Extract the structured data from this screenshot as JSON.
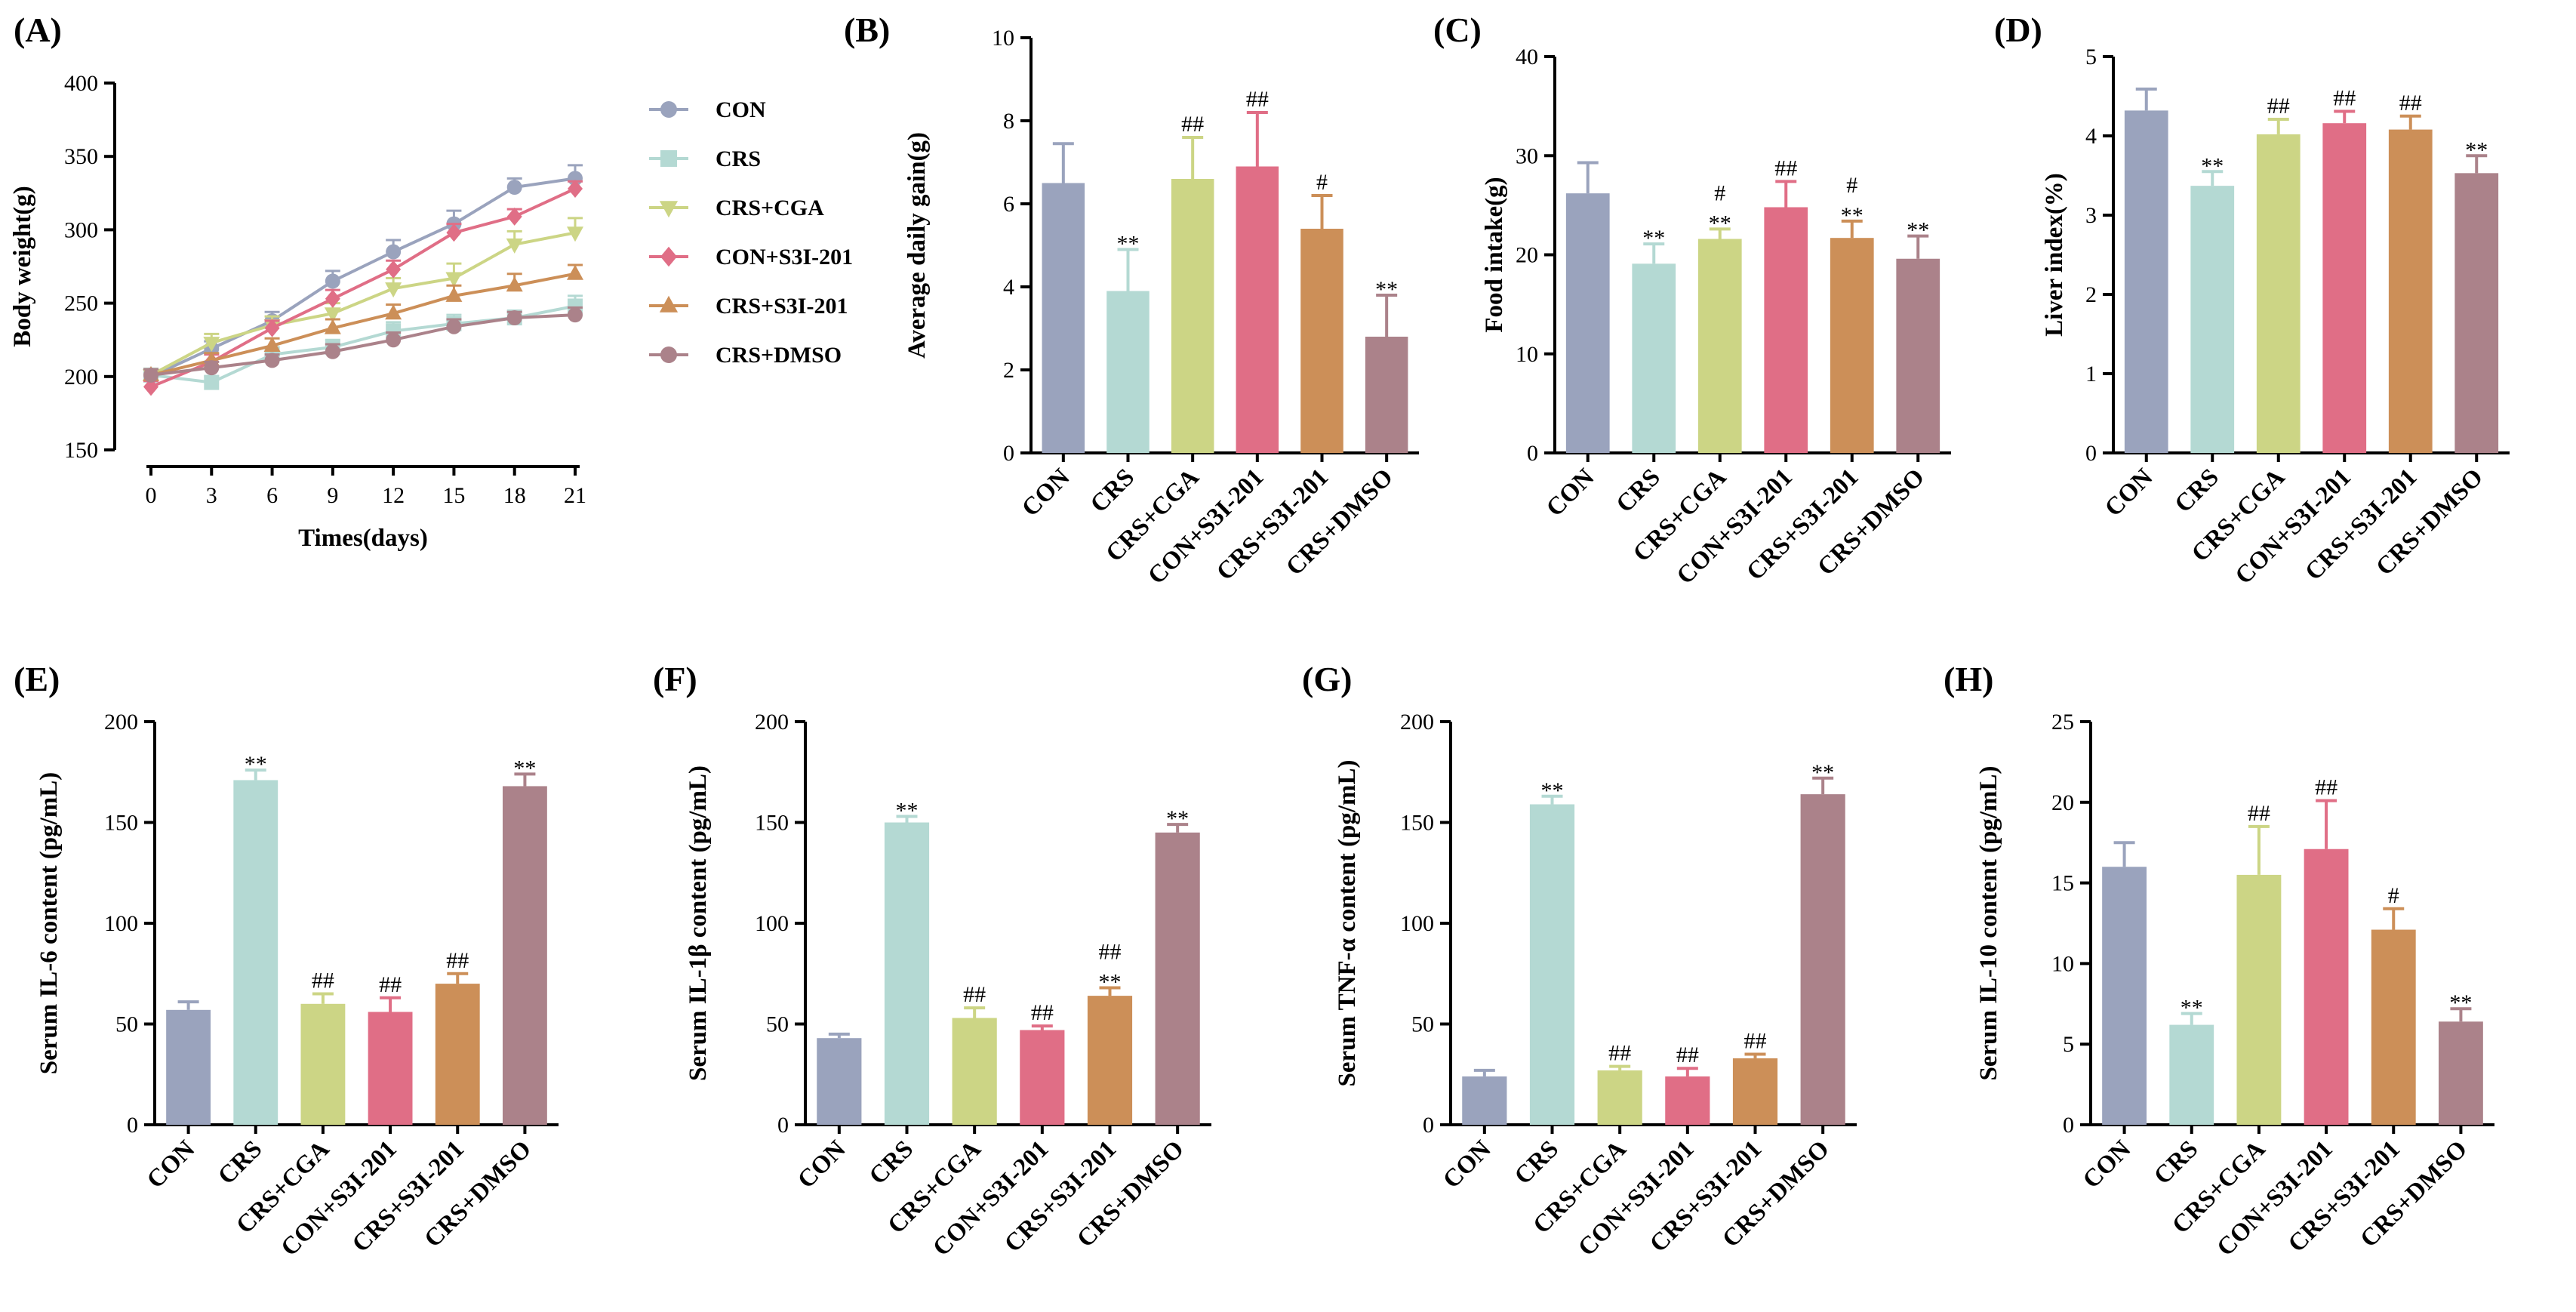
{
  "colors": {
    "CON": "#9aa3bd",
    "CRS": "#b4d9d3",
    "CRS+CGA": "#ccd585",
    "CON+S3I-201": "#e06e86",
    "CRS+S3I-201": "#cc8f58",
    "CRS+DMSO": "#ab828a"
  },
  "chart_data": [
    {
      "panel": "(A)",
      "type": "line",
      "xlabel": "Times(days)",
      "ylabel": "Body weight(g)",
      "x": [
        0,
        3,
        6,
        9,
        12,
        15,
        18,
        21
      ],
      "ylim": [
        150,
        400
      ],
      "yticks": [
        150,
        200,
        250,
        300,
        350,
        400
      ],
      "series": [
        {
          "name": "CON",
          "marker": "circle",
          "values": [
            200,
            219,
            238,
            265,
            285,
            304,
            329,
            335
          ],
          "err": [
            4,
            5,
            6,
            7,
            8,
            9,
            6,
            9
          ]
        },
        {
          "name": "CRS",
          "marker": "square",
          "values": [
            201,
            196,
            215,
            220,
            231,
            236,
            240,
            248
          ],
          "err": [
            4,
            4,
            5,
            5,
            6,
            6,
            5,
            7
          ]
        },
        {
          "name": "CRS+CGA",
          "marker": "triangle-down",
          "values": [
            201,
            223,
            235,
            243,
            260,
            267,
            290,
            298
          ],
          "err": [
            4,
            6,
            6,
            7,
            7,
            10,
            9,
            10
          ]
        },
        {
          "name": "CON+S3I-201",
          "marker": "diamond",
          "values": [
            193,
            210,
            233,
            253,
            273,
            298,
            309,
            328
          ],
          "err": [
            4,
            5,
            5,
            6,
            6,
            6,
            5,
            5
          ]
        },
        {
          "name": "CRS+S3I-201",
          "marker": "triangle",
          "values": [
            201,
            211,
            221,
            233,
            243,
            255,
            262,
            270
          ],
          "err": [
            4,
            5,
            5,
            6,
            6,
            7,
            8,
            6
          ]
        },
        {
          "name": "CRS+DMSO",
          "marker": "circle",
          "values": [
            201,
            206,
            211,
            217,
            225,
            234,
            240,
            242
          ],
          "err": [
            4,
            4,
            4,
            5,
            5,
            5,
            4,
            5
          ]
        }
      ],
      "legend": [
        "CON",
        "CRS",
        "CRS+CGA",
        "CON+S3I-201",
        "CRS+S3I-201",
        "CRS+DMSO"
      ]
    },
    {
      "panel": "(B)",
      "type": "bar",
      "ylabel": "Average daily gain(g)",
      "categories": [
        "CON",
        "CRS",
        "CRS+CGA",
        "CON+S3I-201",
        "CRS+S3I-201",
        "CRS+DMSO"
      ],
      "values": [
        6.5,
        3.9,
        6.6,
        6.9,
        5.4,
        2.8
      ],
      "err": [
        0.95,
        1.0,
        1.0,
        1.3,
        0.8,
        1.0
      ],
      "sig": [
        [],
        [
          "**"
        ],
        [
          "##"
        ],
        [
          "##"
        ],
        [
          "#"
        ],
        [
          "**"
        ]
      ],
      "ylim": [
        0,
        10
      ],
      "yticks": [
        0,
        2,
        4,
        6,
        8,
        10
      ]
    },
    {
      "panel": "(C)",
      "type": "bar",
      "ylabel": "Food intake(g)",
      "categories": [
        "CON",
        "CRS",
        "CRS+CGA",
        "CON+S3I-201",
        "CRS+S3I-201",
        "CRS+DMSO"
      ],
      "values": [
        26.2,
        19.1,
        21.6,
        24.8,
        21.7,
        19.6
      ],
      "err": [
        3.1,
        2.0,
        1.0,
        2.6,
        1.7,
        2.3
      ],
      "sig": [
        [],
        [
          "**"
        ],
        [
          "#",
          "**"
        ],
        [
          "##"
        ],
        [
          "#",
          "**"
        ],
        [
          "**"
        ]
      ],
      "ylim": [
        0,
        40
      ],
      "yticks": [
        0,
        10,
        20,
        30,
        40
      ]
    },
    {
      "panel": "(D)",
      "type": "bar",
      "ylabel": "Liver index(%)",
      "categories": [
        "CON",
        "CRS",
        "CRS+CGA",
        "CON+S3I-201",
        "CRS+S3I-201",
        "CRS+DMSO"
      ],
      "values": [
        4.32,
        3.37,
        4.02,
        4.16,
        4.08,
        3.53
      ],
      "err": [
        0.27,
        0.18,
        0.19,
        0.15,
        0.17,
        0.22
      ],
      "sig": [
        [],
        [
          "**"
        ],
        [
          "##"
        ],
        [
          "##"
        ],
        [
          "##"
        ],
        [
          "**"
        ]
      ],
      "ylim": [
        0,
        5
      ],
      "yticks": [
        0,
        1,
        2,
        3,
        4,
        5
      ]
    },
    {
      "panel": "(E)",
      "type": "bar",
      "ylabel": "Serum IL-6 content (pg/mL)",
      "categories": [
        "CON",
        "CRS",
        "CRS+CGA",
        "CON+S3I-201",
        "CRS+S3I-201",
        "CRS+DMSO"
      ],
      "values": [
        57,
        171,
        60,
        56,
        70,
        168
      ],
      "err": [
        4,
        5,
        5,
        7,
        5,
        6
      ],
      "sig": [
        [],
        [
          "**"
        ],
        [
          "##"
        ],
        [
          "##"
        ],
        [
          "##"
        ],
        [
          "**"
        ]
      ],
      "ylim": [
        0,
        200
      ],
      "yticks": [
        0,
        50,
        100,
        150,
        200
      ]
    },
    {
      "panel": "(F)",
      "type": "bar",
      "ylabel": "Serum IL-1β content (pg/mL)",
      "categories": [
        "CON",
        "CRS",
        "CRS+CGA",
        "CON+S3I-201",
        "CRS+S3I-201",
        "CRS+DMSO"
      ],
      "values": [
        43,
        150,
        53,
        47,
        64,
        145
      ],
      "err": [
        2,
        3,
        5,
        2,
        4,
        4
      ],
      "sig": [
        [],
        [
          "**"
        ],
        [
          "##"
        ],
        [
          "##"
        ],
        [
          "##",
          "**"
        ],
        [
          "**"
        ]
      ],
      "ylim": [
        0,
        200
      ],
      "yticks": [
        0,
        50,
        100,
        150,
        200
      ]
    },
    {
      "panel": "(G)",
      "type": "bar",
      "ylabel": "Serum TNF-α content (pg/mL)",
      "categories": [
        "CON",
        "CRS",
        "CRS+CGA",
        "CON+S3I-201",
        "CRS+S3I-201",
        "CRS+DMSO"
      ],
      "values": [
        24,
        159,
        27,
        24,
        33,
        164
      ],
      "err": [
        3,
        4,
        2,
        4,
        2,
        8
      ],
      "sig": [
        [],
        [
          "**"
        ],
        [
          "##"
        ],
        [
          "##"
        ],
        [
          "##"
        ],
        [
          "**"
        ]
      ],
      "ylim": [
        0,
        200
      ],
      "yticks": [
        0,
        50,
        100,
        150,
        200
      ]
    },
    {
      "panel": "(H)",
      "type": "bar",
      "ylabel": "Serum IL-10 content (pg/mL)",
      "categories": [
        "CON",
        "CRS",
        "CRS+CGA",
        "CON+S3I-201",
        "CRS+S3I-201",
        "CRS+DMSO"
      ],
      "values": [
        16.0,
        6.2,
        15.5,
        17.1,
        12.1,
        6.4
      ],
      "err": [
        1.5,
        0.7,
        3.0,
        3.0,
        1.3,
        0.8
      ],
      "sig": [
        [],
        [
          "**"
        ],
        [
          "##"
        ],
        [
          "##"
        ],
        [
          "#"
        ],
        [
          "**"
        ]
      ],
      "ylim": [
        0,
        25
      ],
      "yticks": [
        0,
        5,
        10,
        15,
        20,
        25
      ]
    }
  ]
}
